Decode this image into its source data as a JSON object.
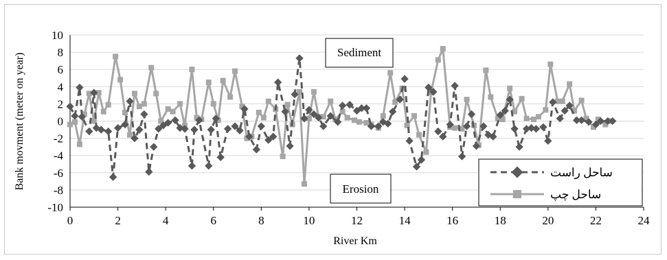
{
  "chart_data": {
    "type": "line",
    "xlabel": "River Km",
    "ylabel": "Bank movment (meter on year)",
    "xlim": [
      0,
      24
    ],
    "ylim": [
      -10,
      10
    ],
    "x_ticks": [
      "0",
      "2",
      "4",
      "6",
      "8",
      "10",
      "12",
      "14",
      "16",
      "18",
      "20",
      "22",
      "24"
    ],
    "y_ticks": [
      "10",
      "8",
      "6",
      "4",
      "2",
      "0",
      "-2",
      "-4",
      "-6",
      "-8",
      "-10"
    ],
    "grid": "horizontal",
    "annotations": {
      "top": "Sediment",
      "bottom": "Erosion"
    },
    "legend_position": "bottom-right",
    "series": [
      {
        "name": "ساحل راست",
        "color": "#595959",
        "style": "dashed",
        "marker": "diamond",
        "x": [
          0.0,
          0.2,
          0.4,
          0.5,
          0.8,
          1.0,
          1.1,
          1.3,
          1.6,
          1.8,
          2.0,
          2.3,
          2.5,
          2.7,
          2.9,
          3.1,
          3.3,
          3.5,
          3.7,
          3.9,
          4.1,
          4.4,
          4.6,
          4.8,
          5.1,
          5.2,
          5.4,
          5.8,
          5.9,
          6.1,
          6.3,
          6.6,
          6.9,
          7.1,
          7.3,
          7.5,
          7.8,
          8.0,
          8.3,
          8.5,
          8.7,
          9.0,
          9.2,
          9.4,
          9.6,
          9.8,
          10.0,
          10.2,
          10.4,
          10.6,
          10.9,
          11.2,
          11.4,
          11.7,
          12.0,
          12.2,
          12.4,
          12.6,
          12.9,
          13.1,
          13.3,
          13.5,
          13.8,
          14.0,
          14.2,
          14.5,
          14.7,
          15.0,
          15.2,
          15.4,
          15.6,
          15.9,
          16.1,
          16.4,
          16.6,
          16.8,
          17.0,
          17.3,
          17.5,
          17.7,
          18.0,
          18.2,
          18.4,
          18.6,
          18.8,
          19.1,
          19.3,
          19.5,
          19.8,
          20.0,
          20.2,
          20.5,
          20.7,
          20.9,
          21.2,
          21.4,
          21.7,
          22.0,
          22.2,
          22.5,
          22.7
        ],
        "y": [
          1.7,
          0.6,
          3.9,
          0.5,
          -1.2,
          3.3,
          -0.8,
          -1.0,
          -1.2,
          -6.5,
          -0.8,
          -0.4,
          2.3,
          -2.0,
          -1.0,
          0.8,
          -5.9,
          -3.0,
          -0.9,
          -0.5,
          -0.2,
          0.1,
          -0.8,
          -0.9,
          -5.2,
          -1.0,
          0.1,
          -5.2,
          -1.0,
          0.3,
          -4.2,
          -0.9,
          -0.6,
          -1.1,
          1.4,
          -1.8,
          -3.3,
          -0.6,
          -2.2,
          -1.8,
          4.5,
          1.1,
          -2.9,
          3.1,
          7.3,
          0.3,
          1.3,
          0.8,
          0.4,
          -0.6,
          0.6,
          -0.1,
          1.8,
          1.9,
          1.2,
          1.5,
          1.5,
          -0.6,
          -0.6,
          -0.1,
          -0.3,
          1.1,
          2.5,
          4.9,
          -2.3,
          -5.3,
          -4.5,
          3.9,
          3.4,
          -1.2,
          -1.8,
          -0.4,
          4.1,
          -4.1,
          -0.6,
          0.8,
          -2.9,
          -0.6,
          -1.6,
          -1.8,
          0.7,
          1.2,
          2.5,
          -0.9,
          -3.0,
          -0.9,
          -0.8,
          -0.9,
          -0.7,
          -2.3,
          2.2,
          0.3,
          1.2,
          1.8,
          0.1,
          0.1,
          -0.1,
          -0.4,
          0.0,
          0.0,
          0.0
        ]
      },
      {
        "name": "ساحل چپ",
        "color": "#a6a6a6",
        "style": "solid",
        "marker": "square",
        "x": [
          0.0,
          0.2,
          0.4,
          0.6,
          0.8,
          1.0,
          1.2,
          1.4,
          1.6,
          1.9,
          2.1,
          2.3,
          2.5,
          2.7,
          2.9,
          3.1,
          3.4,
          3.6,
          3.8,
          4.1,
          4.3,
          4.6,
          4.8,
          5.1,
          5.3,
          5.5,
          5.8,
          6.0,
          6.2,
          6.4,
          6.7,
          6.9,
          7.2,
          7.4,
          7.6,
          7.9,
          8.1,
          8.3,
          8.6,
          8.9,
          9.1,
          9.3,
          9.6,
          9.8,
          10.0,
          10.2,
          10.4,
          10.6,
          10.9,
          11.1,
          11.4,
          11.6,
          11.9,
          12.1,
          12.4,
          12.6,
          12.9,
          13.1,
          13.4,
          13.6,
          13.9,
          14.1,
          14.4,
          14.6,
          14.9,
          15.1,
          15.4,
          15.6,
          15.9,
          16.1,
          16.4,
          16.6,
          16.9,
          17.1,
          17.4,
          17.6,
          17.9,
          18.1,
          18.4,
          18.6,
          18.9,
          19.1,
          19.4,
          19.6,
          19.9,
          20.1,
          20.4,
          20.6,
          20.9,
          21.1,
          21.4,
          21.6,
          21.9,
          22.1,
          22.4,
          22.6
        ],
        "y": [
          -0.4,
          -0.1,
          -2.7,
          0.8,
          3.2,
          0.0,
          3.3,
          1.1,
          1.9,
          7.5,
          4.8,
          1.0,
          -1.6,
          3.2,
          1.7,
          2.0,
          6.2,
          3.2,
          0.0,
          1.4,
          1.1,
          2.0,
          -0.5,
          6.0,
          0.4,
          0.2,
          4.5,
          2.0,
          0.1,
          4.7,
          2.8,
          5.8,
          1.7,
          -2.0,
          -1.8,
          1.0,
          0.4,
          2.3,
          1.4,
          -4.1,
          1.9,
          -0.4,
          3.4,
          -7.3,
          0.3,
          3.4,
          0.5,
          0.5,
          2.3,
          0.2,
          1.1,
          0.4,
          0.1,
          -0.1,
          -0.2,
          -0.4,
          -0.8,
          0.6,
          5.6,
          2.2,
          3.8,
          -0.5,
          0.6,
          -1.6,
          -3.6,
          3.3,
          7.1,
          8.4,
          -0.7,
          -0.8,
          -0.9,
          2.5,
          -0.5,
          -2.8,
          5.9,
          2.8,
          0.3,
          0.2,
          3.8,
          1.1,
          2.6,
          0.3,
          0.2,
          0.5,
          1.3,
          6.6,
          2.3,
          2.3,
          4.3,
          1.2,
          2.4,
          0.3,
          -0.7,
          0.2,
          -0.4,
          0.0
        ]
      }
    ]
  }
}
